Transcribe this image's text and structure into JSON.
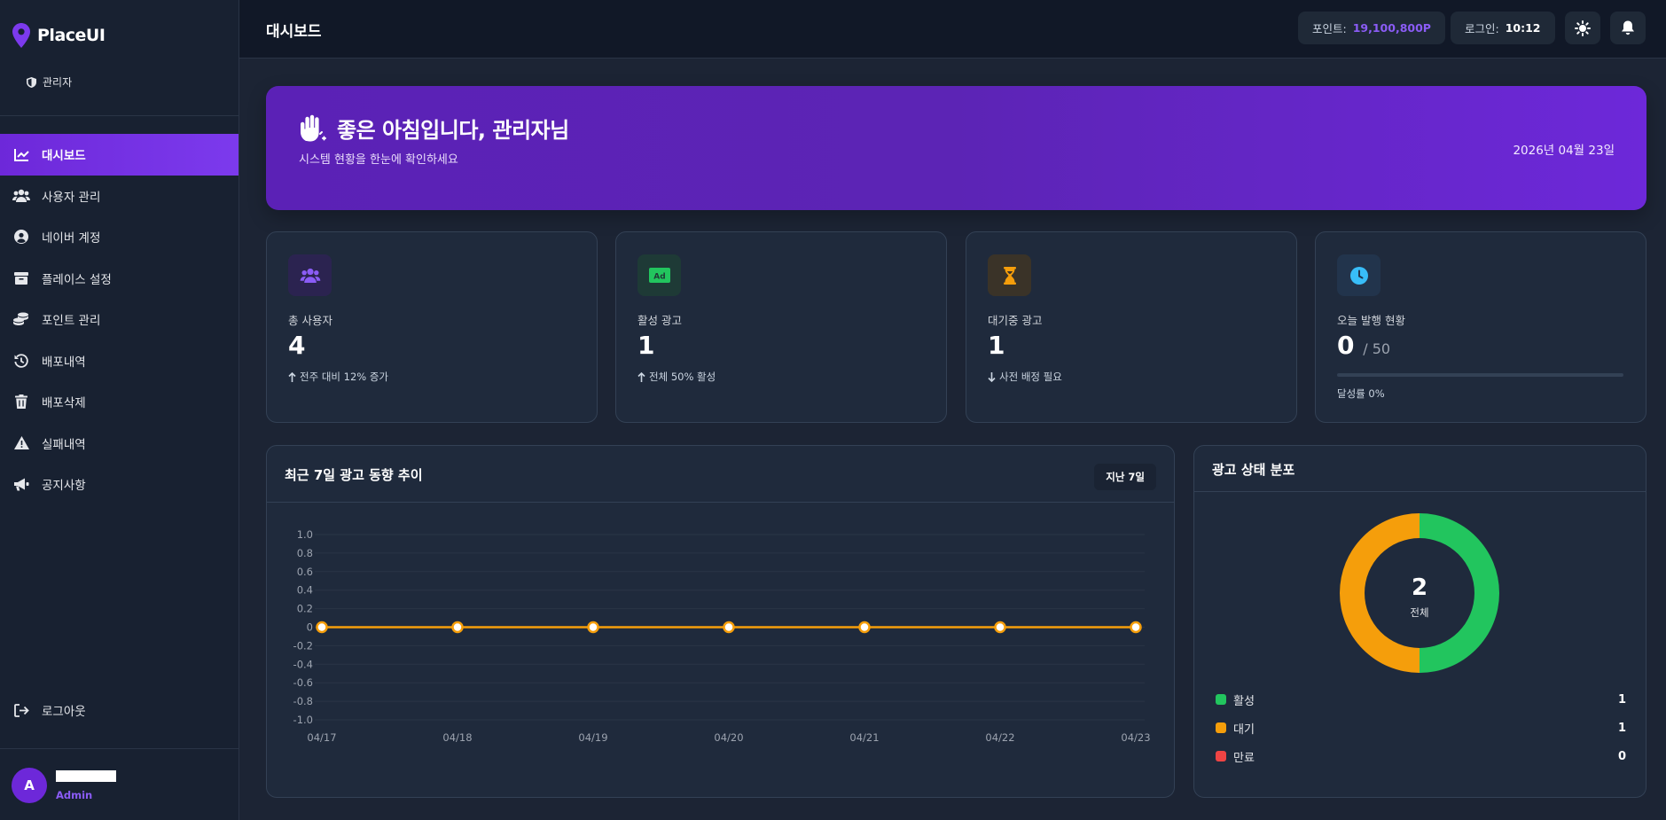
{
  "app": {
    "name": "PlaceUI",
    "role": "관리자"
  },
  "sidebar": {
    "items": [
      {
        "label": "대시보드",
        "icon": "chart-line-icon",
        "active": true
      },
      {
        "label": "사용자 관리",
        "icon": "users-icon"
      },
      {
        "label": "네이버 계정",
        "icon": "user-circle-icon"
      },
      {
        "label": "플레이스 설정",
        "icon": "store-icon"
      },
      {
        "label": "포인트 관리",
        "icon": "coins-icon"
      },
      {
        "label": "배포내역",
        "icon": "history-icon"
      },
      {
        "label": "배포삭제",
        "icon": "trash-icon"
      },
      {
        "label": "실패내역",
        "icon": "warning-icon"
      },
      {
        "label": "공지사항",
        "icon": "megaphone-icon"
      }
    ],
    "logout_label": "로그아웃",
    "user": {
      "initial": "A",
      "role": "Admin"
    }
  },
  "topbar": {
    "title": "대시보드",
    "points_label": "포인트:",
    "points_value": "19,100,800P",
    "login_label": "로그인:",
    "login_value": "10:12"
  },
  "hero": {
    "greeting": "좋은 아침입니다, 관리자님",
    "subtitle": "시스템 현황을 한눈에 확인하세요",
    "date": "2026년 04월 23일"
  },
  "stats": [
    {
      "label": "총 사용자",
      "value": "4",
      "note": "전주 대비 12% 증가",
      "icon": "users-icon",
      "icon_color": "#8b5cf6"
    },
    {
      "label": "활성 광고",
      "value": "1",
      "note": "전체 50% 활성",
      "icon": "ad-icon",
      "icon_color": "#22c55e"
    },
    {
      "label": "대기중 광고",
      "value": "1",
      "note": "사전 배정 필요",
      "icon": "hourglass-icon",
      "icon_color": "#f59e0b"
    },
    {
      "label": "오늘 발행 현황",
      "value": "0",
      "of": "/ 50",
      "progress": 0,
      "progress_note": "달성률 0%",
      "icon": "clock-icon",
      "icon_color": "#38bdf8"
    }
  ],
  "trend_panel": {
    "title": "최근 7일 광고 동향 추이",
    "range_label": "지난 7일"
  },
  "dist_panel": {
    "title": "광고 상태 분포",
    "total": "2",
    "total_label": "전체",
    "legend": [
      {
        "label": "활성",
        "count": "1",
        "color": "#22c55e"
      },
      {
        "label": "대기",
        "count": "1",
        "color": "#f59e0b"
      },
      {
        "label": "만료",
        "count": "0",
        "color": "#ef4444"
      }
    ]
  },
  "chart_data": [
    {
      "type": "line",
      "title": "최근 7일 광고 동향 추이",
      "x": [
        "04/17",
        "04/18",
        "04/19",
        "04/20",
        "04/21",
        "04/22",
        "04/23"
      ],
      "series": [
        {
          "values": [
            0,
            0,
            0,
            0,
            0,
            0,
            0
          ],
          "color": "#f59e0b"
        }
      ],
      "ylim": [
        -1.0,
        1.0
      ],
      "yticks": [
        "1.0",
        "0.8",
        "0.6",
        "0.4",
        "0.2",
        "0",
        "-0.2",
        "-0.4",
        "-0.6",
        "-0.8",
        "-1.0"
      ],
      "legend": "none",
      "grid": true
    },
    {
      "type": "pie",
      "title": "광고 상태 분포",
      "categories": [
        "활성",
        "대기",
        "만료"
      ],
      "values": [
        1,
        1,
        0
      ],
      "colors": [
        "#22c55e",
        "#f59e0b",
        "#ef4444"
      ],
      "donut": true
    }
  ]
}
